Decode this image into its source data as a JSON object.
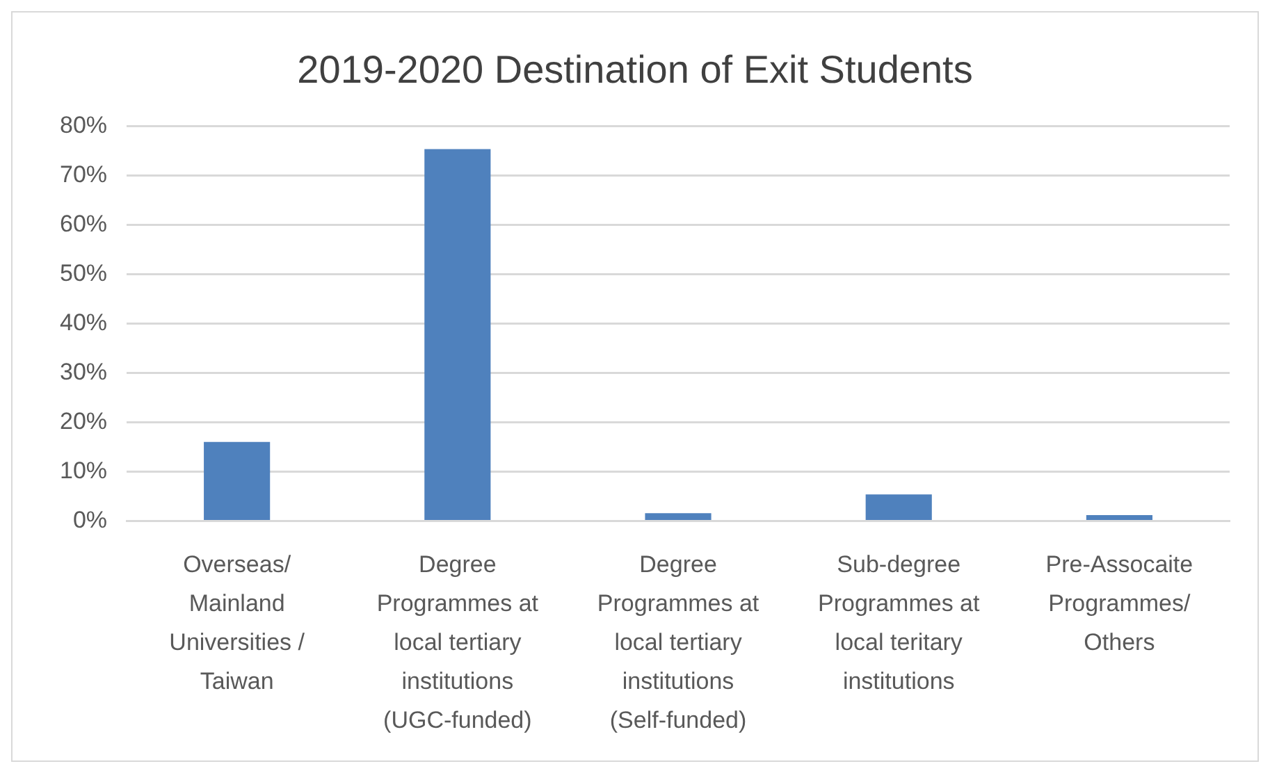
{
  "chart_data": {
    "type": "bar",
    "title": "2019-2020 Destination of Exit Students",
    "categories": [
      "Overseas/ Mainland Universities / Taiwan",
      "Degree Programmes at local tertiary institutions (UGC-funded)",
      "Degree Programmes at local tertiary institutions (Self-funded)",
      "Sub-degree Programmes at local teritary institutions",
      "Pre-Assocaite Programmes/ Others"
    ],
    "values": [
      16.0,
      75.3,
      1.6,
      5.4,
      1.2
    ],
    "color": "#4f81bd",
    "ylim": [
      0,
      80
    ],
    "yticks": [
      {
        "value": 0,
        "label": "0%"
      },
      {
        "value": 10,
        "label": "10%"
      },
      {
        "value": 20,
        "label": "20%"
      },
      {
        "value": 30,
        "label": "30%"
      },
      {
        "value": 40,
        "label": "40%"
      },
      {
        "value": 50,
        "label": "50%"
      },
      {
        "value": 60,
        "label": "60%"
      },
      {
        "value": 70,
        "label": "70%"
      },
      {
        "value": 80,
        "label": "80%"
      }
    ],
    "grid": "y",
    "legend": false
  }
}
